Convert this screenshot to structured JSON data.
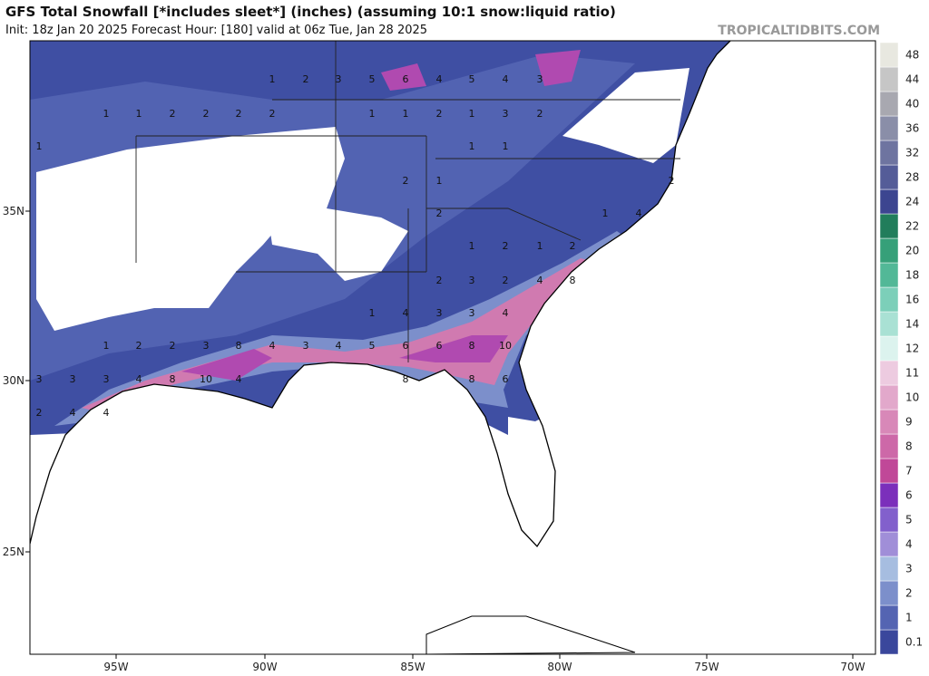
{
  "header": {
    "title": "GFS Total Snowfall [*includes sleet*] (inches) (assuming 10:1 snow:liquid ratio)",
    "subtitle": "Init: 18z Jan 20 2025   Forecast Hour: [180]   valid at 06z Tue, Jan 28 2025",
    "site": "TROPICALTIDBITS.COM"
  },
  "colorbar": {
    "labels": [
      0.1,
      1,
      2,
      3,
      4,
      5,
      6,
      7,
      8,
      9,
      10,
      11,
      12,
      14,
      16,
      18,
      20,
      22,
      24,
      28,
      32,
      36,
      40,
      44,
      48
    ],
    "colors": [
      "#3a479c",
      "#5464b2",
      "#7c8fcb",
      "#a6bde0",
      "#a08ed8",
      "#8260cc",
      "#7b2fbb",
      "#c04898",
      "#cd68a8",
      "#d888b8",
      "#e2a8cb",
      "#edcbe0",
      "#dcf3ee",
      "#a9e1d4",
      "#7ccfb9",
      "#52b897",
      "#36a079",
      "#217d5b",
      "#3c4590",
      "#545c98",
      "#6e74a0",
      "#8a8ea8",
      "#a8a8b0",
      "#c6c6c6",
      "#e8e8e0"
    ]
  },
  "lon_ticks": [
    "95W",
    "90W",
    "85W",
    "80W",
    "75W",
    "70W"
  ],
  "lat_ticks": [
    "35N",
    "30N",
    "25N"
  ],
  "map_labels": [
    1,
    2,
    3,
    5,
    6,
    4,
    5,
    4,
    3,
    1,
    1,
    2,
    2,
    2,
    2,
    1,
    1,
    2,
    1,
    3,
    2,
    1,
    1,
    1,
    2,
    1,
    2,
    2,
    4,
    1,
    1,
    2,
    1,
    2,
    2,
    3,
    2,
    4,
    8,
    1,
    4,
    3,
    3,
    4,
    1,
    2,
    2,
    3,
    8,
    4,
    3,
    4,
    5,
    6,
    6,
    8,
    10,
    3,
    3,
    3,
    4,
    8,
    10,
    4,
    8,
    8,
    6,
    2,
    4,
    4
  ]
}
